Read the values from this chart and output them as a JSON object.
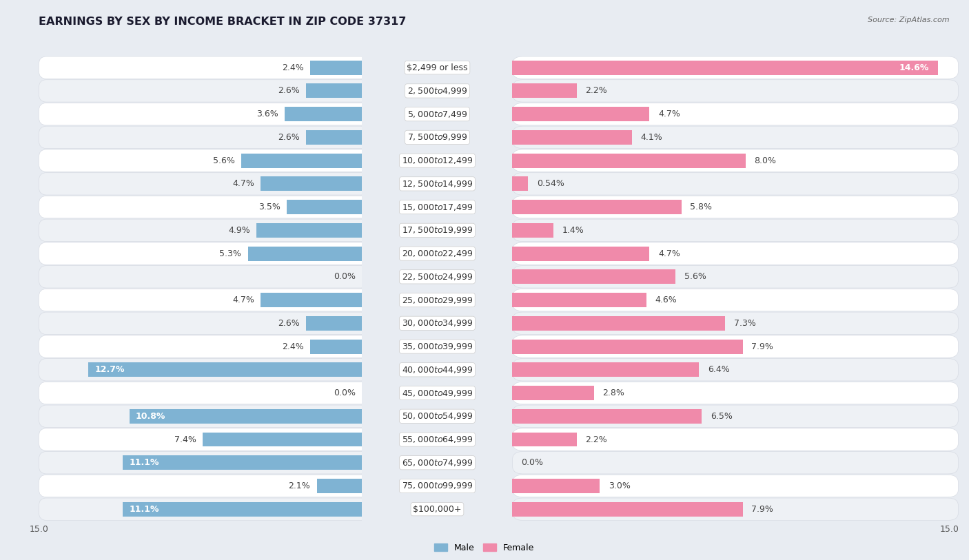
{
  "title": "EARNINGS BY SEX BY INCOME BRACKET IN ZIP CODE 37317",
  "source": "Source: ZipAtlas.com",
  "categories": [
    "$2,499 or less",
    "$2,500 to $4,999",
    "$5,000 to $7,499",
    "$7,500 to $9,999",
    "$10,000 to $12,499",
    "$12,500 to $14,999",
    "$15,000 to $17,499",
    "$17,500 to $19,999",
    "$20,000 to $22,499",
    "$22,500 to $24,999",
    "$25,000 to $29,999",
    "$30,000 to $34,999",
    "$35,000 to $39,999",
    "$40,000 to $44,999",
    "$45,000 to $49,999",
    "$50,000 to $54,999",
    "$55,000 to $64,999",
    "$65,000 to $74,999",
    "$75,000 to $99,999",
    "$100,000+"
  ],
  "male": [
    2.4,
    2.6,
    3.6,
    2.6,
    5.6,
    4.7,
    3.5,
    4.9,
    5.3,
    0.0,
    4.7,
    2.6,
    2.4,
    12.7,
    0.0,
    10.8,
    7.4,
    11.1,
    2.1,
    11.1
  ],
  "female": [
    14.6,
    2.2,
    4.7,
    4.1,
    8.0,
    0.54,
    5.8,
    1.4,
    4.7,
    5.6,
    4.6,
    7.3,
    7.9,
    6.4,
    2.8,
    6.5,
    2.2,
    0.0,
    3.0,
    7.9
  ],
  "male_color": "#7fb3d3",
  "female_color": "#f08aaa",
  "row_color_odd": "#eef1f5",
  "row_color_even": "#ffffff",
  "row_border_color": "#d8dce4",
  "label_bg_color": "#ffffff",
  "background_color": "#e8ecf2",
  "xlim": 15.0,
  "title_fontsize": 11.5,
  "label_fontsize": 9,
  "value_fontsize": 9,
  "tick_fontsize": 9,
  "source_fontsize": 8
}
